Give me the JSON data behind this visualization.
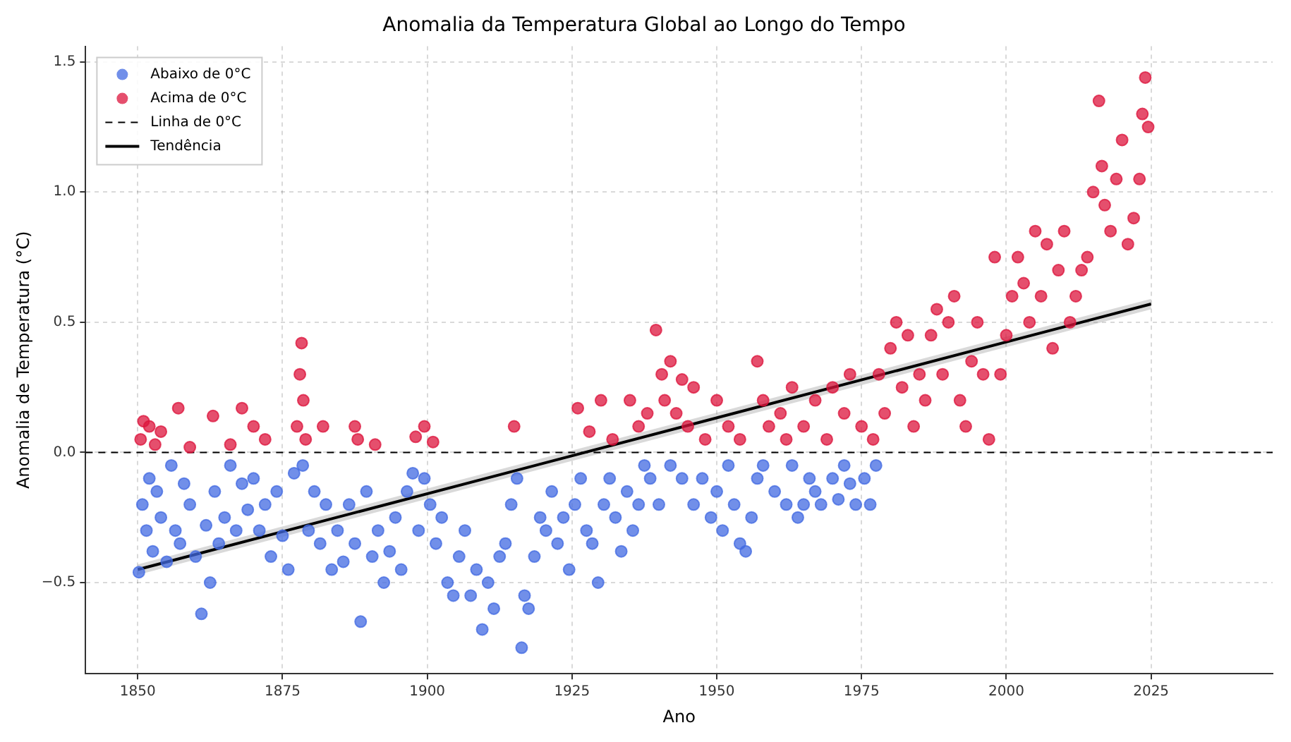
{
  "chart_data": {
    "type": "scatter",
    "title": "Anomalia da Temperatura Global ao Longo do Tempo",
    "xlabel": "Ano",
    "ylabel": "Anomalia de Temperatura (°C)",
    "xlim": [
      1841,
      2046
    ],
    "xticks": [
      1850,
      1875,
      1900,
      1925,
      1950,
      1975,
      2000,
      2025
    ],
    "ylim": [
      -0.85,
      1.56
    ],
    "yticks": [
      {
        "value": -0.5,
        "label": "−0.5"
      },
      {
        "value": 0,
        "label": "0.0"
      },
      {
        "value": 0.5,
        "label": "0.5"
      },
      {
        "value": 1,
        "label": "1.0"
      },
      {
        "value": 1.5,
        "label": "1.5"
      }
    ],
    "grid": true,
    "legend": "top left",
    "ref_lines": [
      {
        "axis": "y",
        "value": 0,
        "label": "Linha de 0°C",
        "color": "#000000",
        "line_style": "dashed"
      }
    ],
    "series": [
      {
        "name": "Abaixo de 0°C",
        "marker": "circle",
        "color": "#4169e1",
        "x": [
          1850.2,
          1850.8,
          1851.5,
          1852,
          1852.6,
          1853.3,
          1854,
          1855,
          1855.8,
          1856.5,
          1857.3,
          1858,
          1859,
          1860,
          1861,
          1861.8,
          1862.5,
          1863.3,
          1864,
          1865,
          1866,
          1867,
          1868,
          1869,
          1870,
          1871,
          1872,
          1873,
          1874,
          1875,
          1876,
          1877,
          1878.5,
          1879.5,
          1880.5,
          1881.5,
          1882.5,
          1883.5,
          1884.5,
          1885.5,
          1886.5,
          1887.5,
          1888.5,
          1889.5,
          1890.5,
          1891.5,
          1892.5,
          1893.5,
          1894.5,
          1895.5,
          1896.5,
          1897.5,
          1898.5,
          1899.5,
          1900.5,
          1901.5,
          1902.5,
          1903.5,
          1904.5,
          1905.5,
          1906.5,
          1907.5,
          1908.5,
          1909.5,
          1910.5,
          1911.5,
          1912.5,
          1913.5,
          1914.5,
          1915.5,
          1916.3,
          1916.8,
          1917.5,
          1918.5,
          1919.5,
          1920.5,
          1921.5,
          1922.5,
          1923.5,
          1924.5,
          1925.5,
          1926.5,
          1927.5,
          1928.5,
          1929.5,
          1930.5,
          1931.5,
          1932.5,
          1933.5,
          1934.5,
          1935.5,
          1936.5,
          1937.5,
          1938.5,
          1940,
          1942,
          1944,
          1946,
          1947.5,
          1949,
          1950,
          1951,
          1952,
          1953,
          1954,
          1955,
          1956,
          1957,
          1958,
          1960,
          1962,
          1963,
          1964,
          1965,
          1966,
          1967,
          1968,
          1970,
          1971,
          1972,
          1973,
          1974,
          1975.5,
          1976.5,
          1977.5
        ],
        "values": [
          -0.46,
          -0.2,
          -0.3,
          -0.1,
          -0.38,
          -0.15,
          -0.25,
          -0.42,
          -0.05,
          -0.3,
          -0.35,
          -0.12,
          -0.2,
          -0.4,
          -0.62,
          -0.28,
          -0.5,
          -0.15,
          -0.35,
          -0.25,
          -0.05,
          -0.3,
          -0.12,
          -0.22,
          -0.1,
          -0.3,
          -0.2,
          -0.4,
          -0.15,
          -0.32,
          -0.45,
          -0.08,
          -0.05,
          -0.3,
          -0.15,
          -0.35,
          -0.2,
          -0.45,
          -0.3,
          -0.42,
          -0.2,
          -0.35,
          -0.65,
          -0.15,
          -0.4,
          -0.3,
          -0.5,
          -0.38,
          -0.25,
          -0.45,
          -0.15,
          -0.08,
          -0.3,
          -0.1,
          -0.2,
          -0.35,
          -0.25,
          -0.5,
          -0.55,
          -0.4,
          -0.3,
          -0.55,
          -0.45,
          -0.68,
          -0.5,
          -0.6,
          -0.4,
          -0.35,
          -0.2,
          -0.1,
          -0.75,
          -0.55,
          -0.6,
          -0.4,
          -0.25,
          -0.3,
          -0.15,
          -0.35,
          -0.25,
          -0.45,
          -0.2,
          -0.1,
          -0.3,
          -0.35,
          -0.5,
          -0.2,
          -0.1,
          -0.25,
          -0.38,
          -0.15,
          -0.3,
          -0.2,
          -0.05,
          -0.1,
          -0.2,
          -0.05,
          -0.1,
          -0.2,
          -0.1,
          -0.25,
          -0.15,
          -0.3,
          -0.05,
          -0.2,
          -0.35,
          -0.38,
          -0.25,
          -0.1,
          -0.05,
          -0.15,
          -0.2,
          -0.05,
          -0.25,
          -0.2,
          -0.1,
          -0.15,
          -0.2,
          -0.1,
          -0.18,
          -0.05,
          -0.12,
          -0.2,
          -0.1,
          -0.2,
          -0.05
        ]
      },
      {
        "name": "Acima de 0°C",
        "marker": "circle",
        "color": "#dc143c",
        "x": [
          1850.5,
          1851,
          1852,
          1853,
          1854,
          1857,
          1859,
          1863,
          1866,
          1868,
          1870,
          1872,
          1877.5,
          1878,
          1878.3,
          1878.6,
          1879,
          1882,
          1887.5,
          1888,
          1891,
          1898,
          1899.5,
          1901,
          1915,
          1926,
          1928,
          1930,
          1932,
          1935,
          1936.5,
          1938,
          1939.5,
          1940.5,
          1941,
          1942,
          1943,
          1944,
          1945,
          1946,
          1948,
          1950,
          1952,
          1954,
          1957,
          1958,
          1959,
          1961,
          1962,
          1963,
          1965,
          1967,
          1969,
          1970,
          1972,
          1973,
          1975,
          1977,
          1978,
          1979,
          1980,
          1981,
          1982,
          1983,
          1984,
          1985,
          1986,
          1987,
          1988,
          1989,
          1990,
          1991,
          1992,
          1993,
          1994,
          1995,
          1996,
          1997,
          1998,
          1999,
          2000,
          2001,
          2002,
          2003,
          2004,
          2005,
          2006,
          2007,
          2008,
          2009,
          2010,
          2011,
          2012,
          2013,
          2014,
          2015,
          2016,
          2016.5,
          2017,
          2018,
          2019,
          2020,
          2021,
          2022,
          2023,
          2023.5,
          2024,
          2024.5
        ],
        "values": [
          0.05,
          0.12,
          0.1,
          0.03,
          0.08,
          0.17,
          0.02,
          0.14,
          0.03,
          0.17,
          0.1,
          0.05,
          0.1,
          0.3,
          0.42,
          0.2,
          0.05,
          0.1,
          0.1,
          0.05,
          0.03,
          0.06,
          0.1,
          0.04,
          0.1,
          0.17,
          0.08,
          0.2,
          0.05,
          0.2,
          0.1,
          0.15,
          0.47,
          0.3,
          0.2,
          0.35,
          0.15,
          0.28,
          0.1,
          0.25,
          0.05,
          0.2,
          0.1,
          0.05,
          0.35,
          0.2,
          0.1,
          0.15,
          0.05,
          0.25,
          0.1,
          0.2,
          0.05,
          0.25,
          0.15,
          0.3,
          0.1,
          0.05,
          0.3,
          0.15,
          0.4,
          0.5,
          0.25,
          0.45,
          0.1,
          0.3,
          0.2,
          0.45,
          0.55,
          0.3,
          0.5,
          0.6,
          0.2,
          0.1,
          0.35,
          0.5,
          0.3,
          0.05,
          0.75,
          0.3,
          0.45,
          0.6,
          0.75,
          0.65,
          0.5,
          0.85,
          0.6,
          0.8,
          0.4,
          0.7,
          0.85,
          0.5,
          0.6,
          0.7,
          0.75,
          1.0,
          1.35,
          1.1,
          0.95,
          0.85,
          1.05,
          1.2,
          0.8,
          0.9,
          1.05,
          1.3,
          1.44,
          1.25
        ]
      },
      {
        "name": "Tendência",
        "type": "line",
        "color": "#000000",
        "x": [
          1850,
          2025
        ],
        "values": [
          -0.45,
          0.57
        ],
        "lower": [
          -0.47,
          0.55
        ],
        "upper": [
          -0.43,
          0.59
        ]
      }
    ]
  }
}
